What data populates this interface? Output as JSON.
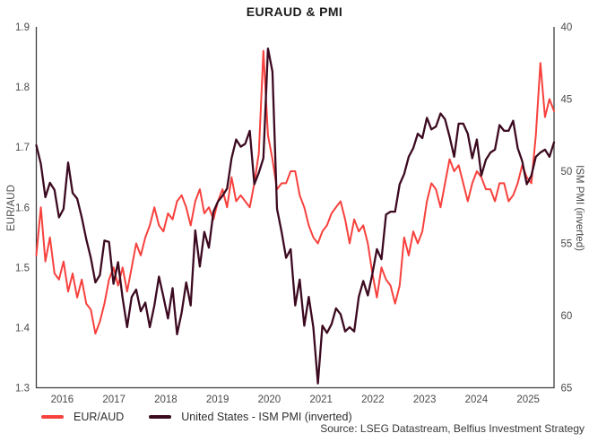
{
  "title": "EURAUD & PMI",
  "source": "Source: LSEG Datastream, Belfius Investment Strategy",
  "colors": {
    "euraud_line": "#f7413d",
    "pmi_line": "#3c0a20",
    "axis": "#3f3f3f",
    "tick_text": "#4a4a4a"
  },
  "chart_data": {
    "type": "line",
    "title": "EURAUD & PMI",
    "x_unit": "month",
    "x_start": "2016-01",
    "x_end": "2025-07",
    "x_tick_labels": [
      "2016",
      "2017",
      "2018",
      "2019",
      "2020",
      "2021",
      "2022",
      "2023",
      "2024",
      "2025"
    ],
    "grid": false,
    "legend_position": "bottom-left",
    "left_axis": {
      "label": "EUR/AUD",
      "min": 1.3,
      "max": 1.9,
      "ticks": [
        "1.3",
        "1.4",
        "1.5",
        "1.6",
        "1.7",
        "1.8",
        "1.9"
      ],
      "inverted": false
    },
    "right_axis": {
      "label": "ISM PMI (inverted)",
      "min": 40,
      "max": 65,
      "ticks": [
        "40",
        "45",
        "50",
        "55",
        "60",
        "65"
      ],
      "inverted": true
    },
    "series": [
      {
        "name": "EUR/AUD",
        "axis": "left",
        "color": "#f7413d",
        "values": [
          1.52,
          1.6,
          1.51,
          1.55,
          1.49,
          1.48,
          1.51,
          1.46,
          1.49,
          1.45,
          1.48,
          1.44,
          1.43,
          1.39,
          1.41,
          1.44,
          1.48,
          1.5,
          1.47,
          1.5,
          1.46,
          1.5,
          1.54,
          1.52,
          1.55,
          1.57,
          1.6,
          1.57,
          1.56,
          1.59,
          1.58,
          1.61,
          1.62,
          1.6,
          1.57,
          1.61,
          1.63,
          1.59,
          1.6,
          1.58,
          1.61,
          1.63,
          1.6,
          1.65,
          1.61,
          1.62,
          1.61,
          1.6,
          1.64,
          1.69,
          1.86,
          1.72,
          1.68,
          1.63,
          1.64,
          1.64,
          1.66,
          1.66,
          1.62,
          1.6,
          1.57,
          1.55,
          1.54,
          1.56,
          1.57,
          1.59,
          1.6,
          1.61,
          1.58,
          1.54,
          1.58,
          1.56,
          1.57,
          1.54,
          1.49,
          1.45,
          1.5,
          1.48,
          1.47,
          1.44,
          1.47,
          1.55,
          1.52,
          1.56,
          1.54,
          1.56,
          1.61,
          1.64,
          1.63,
          1.6,
          1.64,
          1.68,
          1.66,
          1.67,
          1.64,
          1.61,
          1.64,
          1.66,
          1.65,
          1.63,
          1.63,
          1.61,
          1.64,
          1.64,
          1.61,
          1.62,
          1.64,
          1.67,
          1.65,
          1.64,
          1.72,
          1.84,
          1.75,
          1.78,
          1.76
        ]
      },
      {
        "name": "United States - ISM PMI (inverted)",
        "axis": "right",
        "color": "#3c0a20",
        "values": [
          48.2,
          49.5,
          51.8,
          50.8,
          51.3,
          53.2,
          52.6,
          49.4,
          51.5,
          51.9,
          53.2,
          54.7,
          56.0,
          57.7,
          57.2,
          54.8,
          54.9,
          57.8,
          56.3,
          58.8,
          60.8,
          58.7,
          58.2,
          59.7,
          59.1,
          60.8,
          59.3,
          57.3,
          58.7,
          60.2,
          58.1,
          61.3,
          59.8,
          57.7,
          59.3,
          54.1,
          56.6,
          54.2,
          55.3,
          52.8,
          52.1,
          51.7,
          51.2,
          49.1,
          47.8,
          48.3,
          48.1,
          47.2,
          50.9,
          50.1,
          49.1,
          41.5,
          43.1,
          52.6,
          54.2,
          56.0,
          55.4,
          59.3,
          57.5,
          60.7,
          58.7,
          60.8,
          64.7,
          60.7,
          61.2,
          60.6,
          59.5,
          59.9,
          61.1,
          60.8,
          61.1,
          58.7,
          57.6,
          58.6,
          57.1,
          55.4,
          56.1,
          53.0,
          52.8,
          52.8,
          50.9,
          50.2,
          49.0,
          48.4,
          47.4,
          47.7,
          46.3,
          47.1,
          46.9,
          46.0,
          46.4,
          47.6,
          49.0,
          46.7,
          46.7,
          47.4,
          49.1,
          47.8,
          50.3,
          49.2,
          48.7,
          48.5,
          46.8,
          47.2,
          47.2,
          46.5,
          48.4,
          49.3,
          50.9,
          50.3,
          49.0,
          48.7,
          48.5,
          49.0,
          48.0
        ]
      }
    ]
  }
}
